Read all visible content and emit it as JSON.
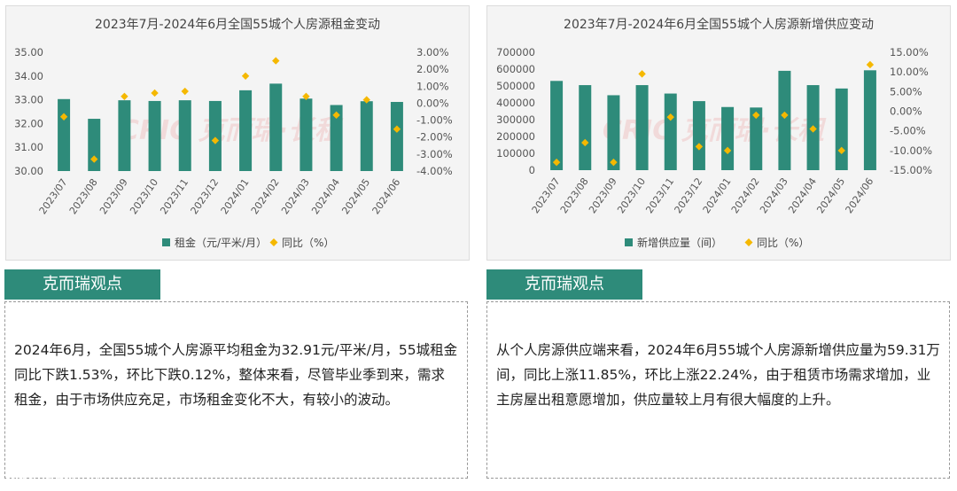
{
  "chart_data": [
    {
      "type": "bar+line",
      "title": "2023年7月-2024年6月全国55城个人房源租金变动",
      "categories": [
        "2023/07",
        "2023/08",
        "2023/09",
        "2023/10",
        "2023/11",
        "2023/12",
        "2024/01",
        "2024/02",
        "2024/03",
        "2024/04",
        "2024/05",
        "2024/06"
      ],
      "y_left": {
        "ticks": [
          "35.00",
          "34.00",
          "33.00",
          "32.00",
          "31.00",
          "30.00"
        ],
        "min": 30,
        "max": 35
      },
      "y_right": {
        "ticks": [
          "3.00%",
          "2.00%",
          "1.00%",
          "0.00%",
          "-1.00%",
          "-2.00%",
          "-3.00%",
          "-4.00%"
        ],
        "min": -4,
        "max": 3
      },
      "series": [
        {
          "name": "租金（元/平米/月）",
          "kind": "bar",
          "axis": "left",
          "color": "#2e8b7a",
          "values": [
            33.03,
            32.2,
            32.98,
            32.95,
            32.98,
            32.95,
            33.4,
            33.68,
            33.05,
            32.78,
            32.94,
            32.91
          ]
        },
        {
          "name": "同比（%）",
          "kind": "marker",
          "axis": "right",
          "color": "#f5b800",
          "values": [
            -0.8,
            -3.3,
            0.4,
            0.6,
            0.7,
            -2.2,
            1.6,
            2.5,
            0.4,
            -0.7,
            0.2,
            -1.53
          ]
        }
      ],
      "watermark": "CRIC 克而瑞·长租"
    },
    {
      "type": "bar+line",
      "title": "2023年7月-2024年6月全国55城个人房源新增供应变动",
      "categories": [
        "2023/07",
        "2023/08",
        "2023/09",
        "2023/10",
        "2023/11",
        "2023/12",
        "2024/01",
        "2024/02",
        "2024/03",
        "2024/04",
        "2024/05",
        "2024/06"
      ],
      "y_left": {
        "ticks": [
          "700000",
          "600000",
          "500000",
          "400000",
          "300000",
          "200000",
          "100000",
          "0"
        ],
        "min": 0,
        "max": 700000
      },
      "y_right": {
        "ticks": [
          "15.00%",
          "10.00%",
          "5.00%",
          "0.00%",
          "-5.00%",
          "-10.00%",
          "-15.00%"
        ],
        "min": -15,
        "max": 15
      },
      "series": [
        {
          "name": "新增供应量（间）",
          "kind": "bar",
          "axis": "left",
          "color": "#2e8b7a",
          "values": [
            530000,
            505000,
            445000,
            505000,
            455000,
            410000,
            375000,
            372000,
            590000,
            505000,
            485000,
            593100
          ]
        },
        {
          "name": "同比（%）",
          "kind": "marker",
          "axis": "right",
          "color": "#f5b800",
          "values": [
            -13,
            -8,
            -13,
            9.5,
            -1.5,
            -9,
            -10,
            -1,
            -1,
            -4.5,
            -10,
            11.85
          ]
        }
      ],
      "watermark": "CRIC 克而瑞·长租"
    }
  ],
  "views": {
    "left": {
      "header": "克而瑞观点",
      "text": "2024年6月，全国55城个人房源平均租金为32.91元/平米/月，55城租金同比下跌1.53%，环比下跌0.12%，整体来看，尽管毕业季到来，需求租金，由于市场供应充足，市场租金变化不大，有较小的波动。"
    },
    "right": {
      "header": "克而瑞观点",
      "text": "从个人房源供应端来看，2024年6月55城个人房源新增供应量为59.31万间，同比上涨11.85%，环比上涨22.24%，由于租赁市场需求增加，业主房屋出租意愿增加，供应量较上月有很大幅度的上升。"
    }
  },
  "brand": {
    "label": "大数跨境",
    "icon": "brand-logo-icon"
  }
}
